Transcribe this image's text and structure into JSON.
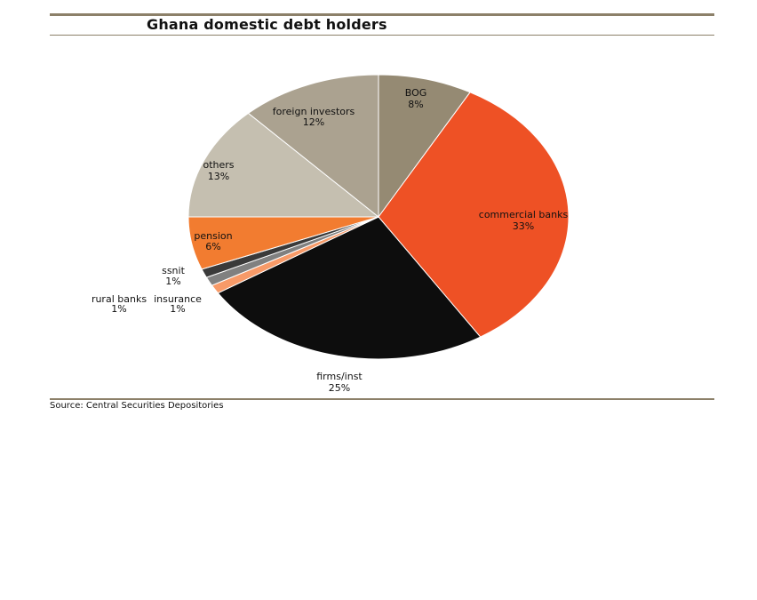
{
  "header": {
    "title": "Ghana domestic debt holders"
  },
  "footer": {
    "source": "Source: Central Securities Depositories"
  },
  "chart_data": {
    "type": "pie",
    "title": "Ghana domestic debt holders",
    "slices": [
      {
        "name": "BOG",
        "value": 8,
        "label": "8%",
        "color": "#958a73"
      },
      {
        "name": "commercial banks",
        "value": 33,
        "label": "33%",
        "color": "#ee5125"
      },
      {
        "name": "firms/inst",
        "value": 25,
        "label": "25%",
        "color": "#0d0d0d"
      },
      {
        "name": "insurance",
        "value": 1,
        "label": "1%",
        "color": "#f79a68"
      },
      {
        "name": "rural banks",
        "value": 1,
        "label": "1%",
        "color": "#808080"
      },
      {
        "name": "ssnit",
        "value": 1,
        "label": "1%",
        "color": "#3a3a3a"
      },
      {
        "name": "pension",
        "value": 6,
        "label": "6%",
        "color": "#f27c30"
      },
      {
        "name": "others",
        "value": 13,
        "label": "13%",
        "color": "#c5bfb0"
      },
      {
        "name": "foreign investors",
        "value": 12,
        "label": "12%",
        "color": "#aba290"
      }
    ]
  }
}
